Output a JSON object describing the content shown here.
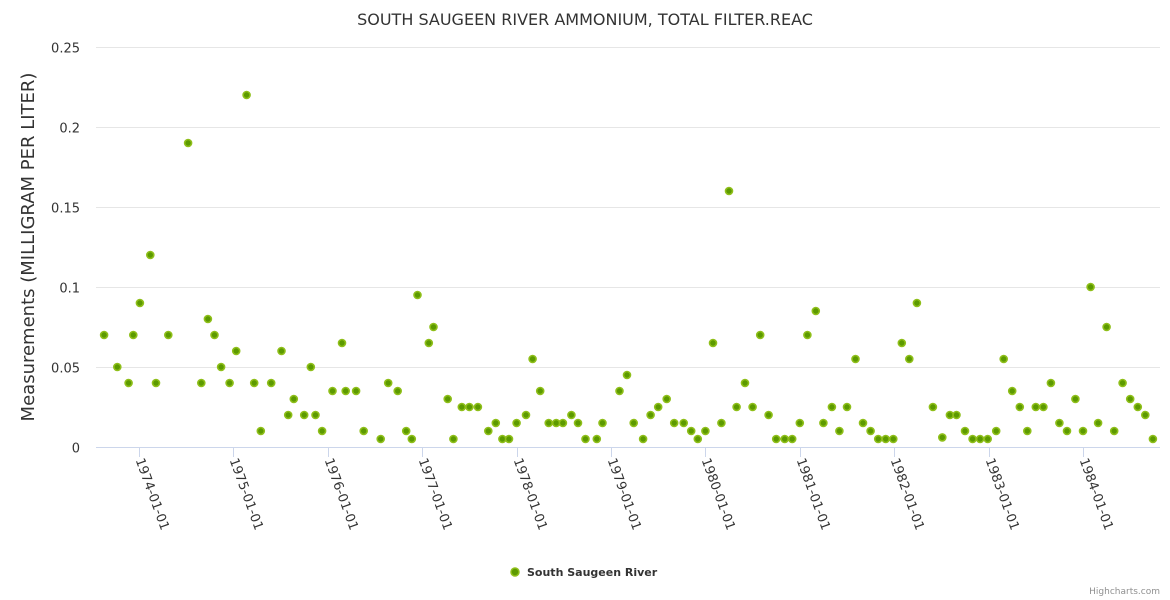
{
  "chart_data": {
    "type": "scatter",
    "title": "SOUTH SAUGEEN RIVER AMMONIUM, TOTAL FILTER.REAC",
    "xlabel": "",
    "ylabel": "Measurements (MILLIGRAM PER LITER)",
    "ylim": [
      0,
      0.25
    ],
    "yticks": [
      "0",
      "0.05",
      "0.1",
      "0.15",
      "0.2",
      "0.25"
    ],
    "ytick_values": [
      0,
      0.05,
      0.1,
      0.15,
      0.2,
      0.25
    ],
    "xlim": [
      1973.6,
      1984.75
    ],
    "xticks": [
      "1974-01-01",
      "1975-01-01",
      "1976-01-01",
      "1977-01-01",
      "1978-01-01",
      "1979-01-01",
      "1980-01-01",
      "1981-01-01",
      "1982-01-01",
      "1983-01-01",
      "1984-01-01"
    ],
    "xtick_values": [
      1974,
      1975,
      1976,
      1977,
      1978,
      1979,
      1980,
      1981,
      1982,
      1983,
      1984
    ],
    "grid": true,
    "legend_position": "bottom-center",
    "credits": "Highcharts.com",
    "series": [
      {
        "name": "South Saugeen River",
        "color": "#7cb5ec",
        "marker_fill": "#5c9a00",
        "marker_line": "#8fbf1a",
        "points": [
          [
            1973.63,
            0.07
          ],
          [
            1973.77,
            0.05
          ],
          [
            1973.89,
            0.04
          ],
          [
            1973.94,
            0.07
          ],
          [
            1974.01,
            0.09
          ],
          [
            1974.12,
            0.12
          ],
          [
            1974.18,
            0.04
          ],
          [
            1974.31,
            0.07
          ],
          [
            1974.52,
            0.19
          ],
          [
            1974.66,
            0.04
          ],
          [
            1974.73,
            0.08
          ],
          [
            1974.8,
            0.07
          ],
          [
            1974.87,
            0.05
          ],
          [
            1974.96,
            0.04
          ],
          [
            1975.03,
            0.06
          ],
          [
            1975.14,
            0.22
          ],
          [
            1975.22,
            0.04
          ],
          [
            1975.29,
            0.01
          ],
          [
            1975.4,
            0.04
          ],
          [
            1975.51,
            0.06
          ],
          [
            1975.58,
            0.02
          ],
          [
            1975.64,
            0.03
          ],
          [
            1975.75,
            0.02
          ],
          [
            1975.82,
            0.05
          ],
          [
            1975.87,
            0.02
          ],
          [
            1975.94,
            0.01
          ],
          [
            1976.05,
            0.035
          ],
          [
            1976.15,
            0.065
          ],
          [
            1976.19,
            0.035
          ],
          [
            1976.3,
            0.035
          ],
          [
            1976.38,
            0.01
          ],
          [
            1976.56,
            0.005
          ],
          [
            1976.64,
            0.04
          ],
          [
            1976.74,
            0.035
          ],
          [
            1976.83,
            0.01
          ],
          [
            1976.89,
            0.005
          ],
          [
            1976.95,
            0.095
          ],
          [
            1977.07,
            0.065
          ],
          [
            1977.12,
            0.075
          ],
          [
            1977.27,
            0.03
          ],
          [
            1977.33,
            0.005
          ],
          [
            1977.42,
            0.025
          ],
          [
            1977.5,
            0.025
          ],
          [
            1977.59,
            0.025
          ],
          [
            1977.7,
            0.01
          ],
          [
            1977.78,
            0.015
          ],
          [
            1977.85,
            0.005
          ],
          [
            1977.92,
            0.005
          ],
          [
            1978.0,
            0.015
          ],
          [
            1978.1,
            0.02
          ],
          [
            1978.17,
            0.055
          ],
          [
            1978.25,
            0.035
          ],
          [
            1978.34,
            0.015
          ],
          [
            1978.42,
            0.015
          ],
          [
            1978.49,
            0.015
          ],
          [
            1978.58,
            0.02
          ],
          [
            1978.65,
            0.015
          ],
          [
            1978.73,
            0.005
          ],
          [
            1978.85,
            0.005
          ],
          [
            1978.91,
            0.015
          ],
          [
            1979.09,
            0.035
          ],
          [
            1979.17,
            0.045
          ],
          [
            1979.24,
            0.015
          ],
          [
            1979.34,
            0.005
          ],
          [
            1979.42,
            0.02
          ],
          [
            1979.5,
            0.025
          ],
          [
            1979.59,
            0.03
          ],
          [
            1979.67,
            0.015
          ],
          [
            1979.77,
            0.015
          ],
          [
            1979.85,
            0.01
          ],
          [
            1979.92,
            0.005
          ],
          [
            1980.0,
            0.01
          ],
          [
            1980.08,
            0.065
          ],
          [
            1980.17,
            0.015
          ],
          [
            1980.25,
            0.16
          ],
          [
            1980.33,
            0.025
          ],
          [
            1980.42,
            0.04
          ],
          [
            1980.5,
            0.025
          ],
          [
            1980.58,
            0.07
          ],
          [
            1980.67,
            0.02
          ],
          [
            1980.75,
            0.005
          ],
          [
            1980.84,
            0.005
          ],
          [
            1980.92,
            0.005
          ],
          [
            1981.0,
            0.015
          ],
          [
            1981.08,
            0.07
          ],
          [
            1981.17,
            0.085
          ],
          [
            1981.25,
            0.015
          ],
          [
            1981.34,
            0.025
          ],
          [
            1981.42,
            0.01
          ],
          [
            1981.5,
            0.025
          ],
          [
            1981.59,
            0.055
          ],
          [
            1981.67,
            0.015
          ],
          [
            1981.75,
            0.01
          ],
          [
            1981.83,
            0.005
          ],
          [
            1981.91,
            0.005
          ],
          [
            1981.99,
            0.005
          ],
          [
            1982.08,
            0.065
          ],
          [
            1982.16,
            0.055
          ],
          [
            1982.24,
            0.09
          ],
          [
            1982.41,
            0.025
          ],
          [
            1982.51,
            0.006
          ],
          [
            1982.59,
            0.02
          ],
          [
            1982.66,
            0.02
          ],
          [
            1982.75,
            0.01
          ],
          [
            1982.83,
            0.005
          ],
          [
            1982.91,
            0.005
          ],
          [
            1982.99,
            0.005
          ],
          [
            1983.08,
            0.01
          ],
          [
            1983.16,
            0.055
          ],
          [
            1983.25,
            0.035
          ],
          [
            1983.33,
            0.025
          ],
          [
            1983.41,
            0.01
          ],
          [
            1983.5,
            0.025
          ],
          [
            1983.58,
            0.025
          ],
          [
            1983.66,
            0.04
          ],
          [
            1983.75,
            0.015
          ],
          [
            1983.83,
            0.01
          ],
          [
            1983.92,
            0.03
          ],
          [
            1984.0,
            0.01
          ],
          [
            1984.08,
            0.1
          ],
          [
            1984.16,
            0.015
          ],
          [
            1984.25,
            0.075
          ],
          [
            1984.33,
            0.01
          ],
          [
            1984.42,
            0.04
          ],
          [
            1984.5,
            0.03
          ],
          [
            1984.58,
            0.025
          ],
          [
            1984.66,
            0.02
          ],
          [
            1984.74,
            0.005
          ]
        ]
      }
    ]
  }
}
